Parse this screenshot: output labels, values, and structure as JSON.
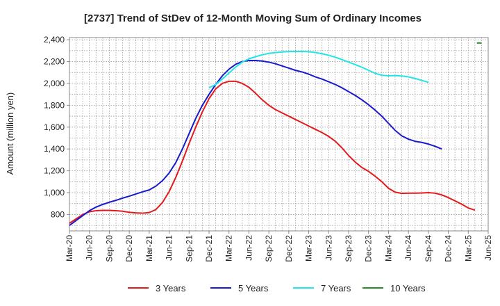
{
  "chart_data": {
    "type": "line",
    "title": "[2737]  Trend of StDev of 12-Month Moving Sum of Ordinary Incomes",
    "xlabel": "",
    "ylabel": "Amount (million yen)",
    "ylim": [
      650,
      2420
    ],
    "yticks": [
      800,
      1000,
      1200,
      1400,
      1600,
      1800,
      2000,
      2200,
      2400
    ],
    "ytick_labels": [
      "800",
      "1,000",
      "1,200",
      "1,400",
      "1,600",
      "1,800",
      "2,000",
      "2,200",
      "2,400"
    ],
    "xlim": [
      0,
      63
    ],
    "xticks": [
      0,
      3,
      6,
      9,
      12,
      15,
      18,
      21,
      24,
      27,
      30,
      33,
      36,
      39,
      42,
      45,
      48,
      51,
      54,
      57,
      60,
      63
    ],
    "xtick_labels": [
      "Mar-20",
      "Jun-20",
      "Sep-20",
      "Dec-20",
      "Mar-21",
      "Jun-21",
      "Sep-21",
      "Dec-21",
      "Mar-22",
      "Jun-22",
      "Sep-22",
      "Dec-22",
      "Mar-23",
      "Jun-23",
      "Sep-23",
      "Dec-23",
      "Mar-24",
      "Jun-24",
      "Sep-24",
      "Dec-24",
      "Mar-25",
      "Jun-25"
    ],
    "grid": true,
    "legend_position": "bottom",
    "series": [
      {
        "name": "3 Years",
        "color": "#e31a1c",
        "points": [
          [
            0,
            720
          ],
          [
            1,
            760
          ],
          [
            2,
            800
          ],
          [
            3,
            825
          ],
          [
            4,
            835
          ],
          [
            5,
            838
          ],
          [
            6,
            838
          ],
          [
            7,
            835
          ],
          [
            8,
            830
          ],
          [
            9,
            820
          ],
          [
            10,
            815
          ],
          [
            11,
            812
          ],
          [
            12,
            818
          ],
          [
            13,
            845
          ],
          [
            14,
            910
          ],
          [
            15,
            1010
          ],
          [
            16,
            1140
          ],
          [
            17,
            1290
          ],
          [
            18,
            1450
          ],
          [
            19,
            1600
          ],
          [
            20,
            1740
          ],
          [
            21,
            1860
          ],
          [
            22,
            1950
          ],
          [
            23,
            2000
          ],
          [
            24,
            2020
          ],
          [
            25,
            2020
          ],
          [
            26,
            2000
          ],
          [
            27,
            1965
          ],
          [
            28,
            1910
          ],
          [
            29,
            1850
          ],
          [
            30,
            1800
          ],
          [
            31,
            1760
          ],
          [
            32,
            1730
          ],
          [
            33,
            1700
          ],
          [
            34,
            1670
          ],
          [
            35,
            1640
          ],
          [
            36,
            1610
          ],
          [
            37,
            1580
          ],
          [
            38,
            1550
          ],
          [
            39,
            1515
          ],
          [
            40,
            1470
          ],
          [
            41,
            1410
          ],
          [
            42,
            1340
          ],
          [
            43,
            1280
          ],
          [
            44,
            1230
          ],
          [
            45,
            1195
          ],
          [
            46,
            1150
          ],
          [
            47,
            1100
          ],
          [
            48,
            1040
          ],
          [
            49,
            1005
          ],
          [
            50,
            993
          ],
          [
            51,
            995
          ],
          [
            52,
            995
          ],
          [
            53,
            997
          ],
          [
            54,
            1000
          ],
          [
            55,
            995
          ],
          [
            56,
            980
          ],
          [
            57,
            955
          ],
          [
            58,
            925
          ],
          [
            59,
            895
          ],
          [
            60,
            860
          ],
          [
            61,
            840
          ]
        ]
      },
      {
        "name": "5 Years",
        "color": "#1a1acc",
        "points": [
          [
            0,
            700
          ],
          [
            1,
            745
          ],
          [
            2,
            790
          ],
          [
            3,
            835
          ],
          [
            4,
            868
          ],
          [
            5,
            892
          ],
          [
            6,
            912
          ],
          [
            7,
            930
          ],
          [
            8,
            950
          ],
          [
            9,
            968
          ],
          [
            10,
            988
          ],
          [
            11,
            1008
          ],
          [
            12,
            1025
          ],
          [
            13,
            1060
          ],
          [
            14,
            1110
          ],
          [
            15,
            1180
          ],
          [
            16,
            1275
          ],
          [
            17,
            1400
          ],
          [
            18,
            1540
          ],
          [
            19,
            1680
          ],
          [
            20,
            1800
          ],
          [
            21,
            1900
          ],
          [
            22,
            1990
          ],
          [
            23,
            2070
          ],
          [
            24,
            2130
          ],
          [
            25,
            2175
          ],
          [
            26,
            2200
          ],
          [
            27,
            2210
          ],
          [
            28,
            2210
          ],
          [
            29,
            2205
          ],
          [
            30,
            2195
          ],
          [
            31,
            2180
          ],
          [
            32,
            2160
          ],
          [
            33,
            2140
          ],
          [
            34,
            2120
          ],
          [
            35,
            2105
          ],
          [
            36,
            2085
          ],
          [
            37,
            2060
          ],
          [
            38,
            2040
          ],
          [
            39,
            2015
          ],
          [
            40,
            1990
          ],
          [
            41,
            1960
          ],
          [
            42,
            1925
          ],
          [
            43,
            1890
          ],
          [
            44,
            1850
          ],
          [
            45,
            1805
          ],
          [
            46,
            1755
          ],
          [
            47,
            1700
          ],
          [
            48,
            1635
          ],
          [
            49,
            1570
          ],
          [
            50,
            1520
          ],
          [
            51,
            1490
          ],
          [
            52,
            1470
          ],
          [
            53,
            1460
          ],
          [
            54,
            1445
          ],
          [
            55,
            1425
          ],
          [
            56,
            1400
          ]
        ]
      },
      {
        "name": "7 Years",
        "color": "#22e5e5",
        "points": [
          [
            21,
            1960
          ],
          [
            22,
            1990
          ],
          [
            23,
            2040
          ],
          [
            24,
            2095
          ],
          [
            25,
            2150
          ],
          [
            26,
            2195
          ],
          [
            27,
            2225
          ],
          [
            28,
            2245
          ],
          [
            29,
            2262
          ],
          [
            30,
            2275
          ],
          [
            31,
            2282
          ],
          [
            32,
            2288
          ],
          [
            33,
            2292
          ],
          [
            34,
            2293
          ],
          [
            35,
            2293
          ],
          [
            36,
            2290
          ],
          [
            37,
            2283
          ],
          [
            38,
            2272
          ],
          [
            39,
            2258
          ],
          [
            40,
            2240
          ],
          [
            41,
            2218
          ],
          [
            42,
            2195
          ],
          [
            43,
            2172
          ],
          [
            44,
            2148
          ],
          [
            45,
            2120
          ],
          [
            46,
            2092
          ],
          [
            47,
            2075
          ],
          [
            48,
            2070
          ],
          [
            49,
            2072
          ],
          [
            50,
            2068
          ],
          [
            51,
            2060
          ],
          [
            52,
            2045
          ],
          [
            53,
            2028
          ],
          [
            54,
            2010
          ]
        ]
      },
      {
        "name": "10 Years",
        "color": "#2a8a2a",
        "points": [
          [
            61.3,
            2370
          ],
          [
            62,
            2370
          ]
        ]
      }
    ]
  }
}
